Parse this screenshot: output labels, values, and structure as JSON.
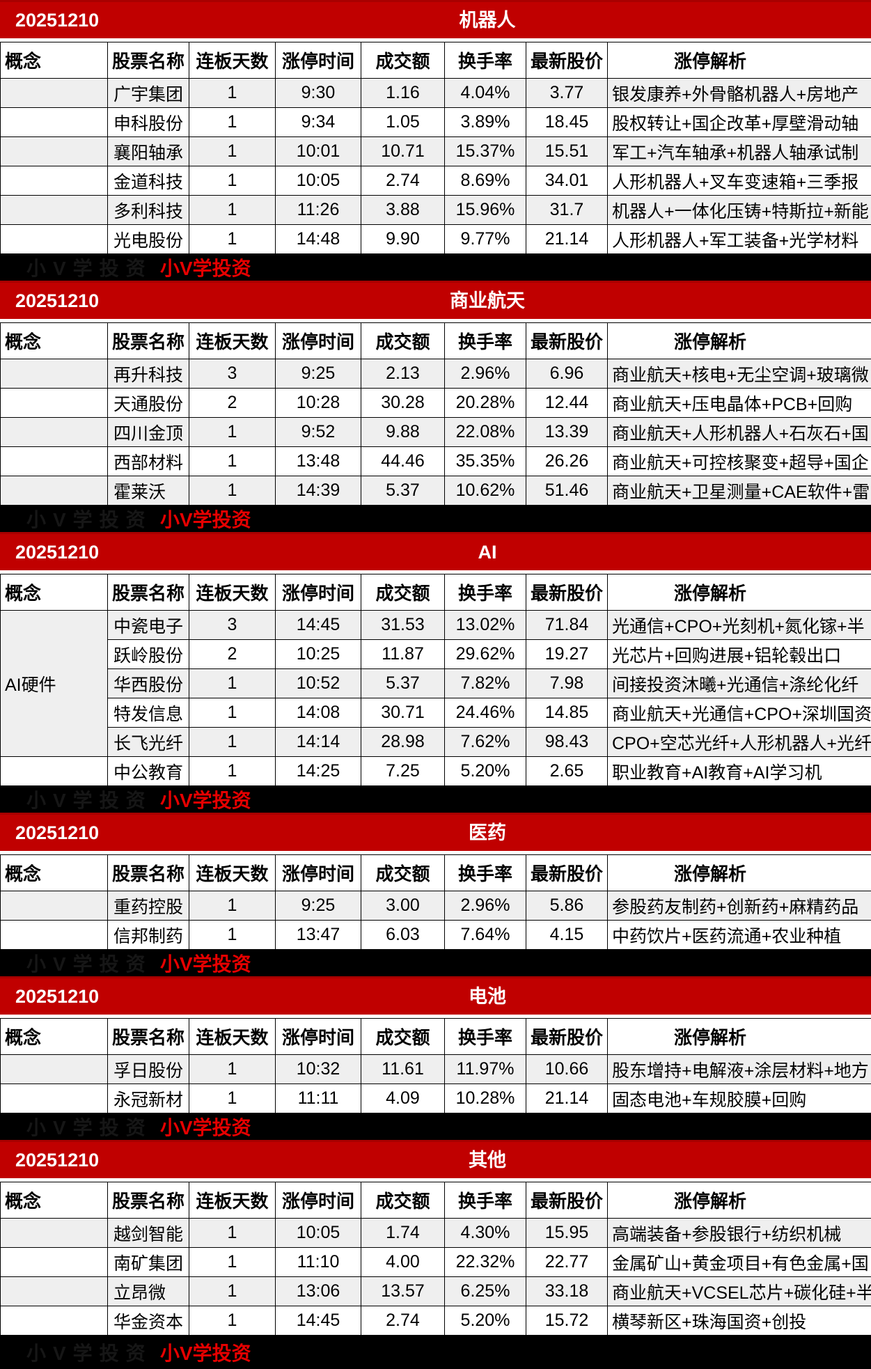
{
  "watermark": {
    "brand": "小V学投资"
  },
  "colors": {
    "header_red": "#c00000",
    "watermark_red": "#e60000",
    "row_alt_gray": "#efefef",
    "bar_black": "#000000"
  },
  "columns": [
    "概念",
    "股票名称",
    "连板天数",
    "涨停时间",
    "成交额",
    "换手率",
    "最新股价",
    "涨停解析"
  ],
  "sections": [
    {
      "date": "20251210",
      "title": "机器人",
      "concept": "",
      "concept_rowspan": 0,
      "rows": [
        {
          "name": "广宇集团",
          "days": "1",
          "time": "9:30",
          "amount": "1.16",
          "turnover": "4.04%",
          "price": "3.77",
          "analysis": "银发康养+外骨骼机器人+房地产"
        },
        {
          "name": "申科股份",
          "days": "1",
          "time": "9:34",
          "amount": "1.05",
          "turnover": "3.89%",
          "price": "18.45",
          "analysis": "股权转让+国企改革+厚壁滑动轴"
        },
        {
          "name": "襄阳轴承",
          "days": "1",
          "time": "10:01",
          "amount": "10.71",
          "turnover": "15.37%",
          "price": "15.51",
          "analysis": "军工+汽车轴承+机器人轴承试制"
        },
        {
          "name": "金道科技",
          "days": "1",
          "time": "10:05",
          "amount": "2.74",
          "turnover": "8.69%",
          "price": "34.01",
          "analysis": "人形机器人+叉车变速箱+三季报"
        },
        {
          "name": "多利科技",
          "days": "1",
          "time": "11:26",
          "amount": "3.88",
          "turnover": "15.96%",
          "price": "31.7",
          "analysis": "机器人+一体化压铸+特斯拉+新能"
        },
        {
          "name": "光电股份",
          "days": "1",
          "time": "14:48",
          "amount": "9.90",
          "turnover": "9.77%",
          "price": "21.14",
          "analysis": "人形机器人+军工装备+光学材料"
        }
      ]
    },
    {
      "date": "20251210",
      "title": "商业航天",
      "concept": "",
      "concept_rowspan": 0,
      "rows": [
        {
          "name": "再升科技",
          "days": "3",
          "time": "9:25",
          "amount": "2.13",
          "turnover": "2.96%",
          "price": "6.96",
          "analysis": "商业航天+核电+无尘空调+玻璃微"
        },
        {
          "name": "天通股份",
          "days": "2",
          "time": "10:28",
          "amount": "30.28",
          "turnover": "20.28%",
          "price": "12.44",
          "analysis": "商业航天+压电晶体+PCB+回购"
        },
        {
          "name": "四川金顶",
          "days": "1",
          "time": "9:52",
          "amount": "9.88",
          "turnover": "22.08%",
          "price": "13.39",
          "analysis": "商业航天+人形机器人+石灰石+国"
        },
        {
          "name": "西部材料",
          "days": "1",
          "time": "13:48",
          "amount": "44.46",
          "turnover": "35.35%",
          "price": "26.26",
          "analysis": "商业航天+可控核聚变+超导+国企"
        },
        {
          "name": "霍莱沃",
          "days": "1",
          "time": "14:39",
          "amount": "5.37",
          "turnover": "10.62%",
          "price": "51.46",
          "analysis": "商业航天+卫星测量+CAE软件+雷"
        }
      ]
    },
    {
      "date": "20251210",
      "title": "AI",
      "concept": "AI硬件",
      "concept_rowspan": 5,
      "rows": [
        {
          "name": "中瓷电子",
          "days": "3",
          "time": "14:45",
          "amount": "31.53",
          "turnover": "13.02%",
          "price": "71.84",
          "analysis": "光通信+CPO+光刻机+氮化镓+半"
        },
        {
          "name": "跃岭股份",
          "days": "2",
          "time": "10:25",
          "amount": "11.87",
          "turnover": "29.62%",
          "price": "19.27",
          "analysis": "光芯片+回购进展+铝轮毂出口"
        },
        {
          "name": "华西股份",
          "days": "1",
          "time": "10:52",
          "amount": "5.37",
          "turnover": "7.82%",
          "price": "7.98",
          "analysis": "间接投资沐曦+光通信+涤纶化纤"
        },
        {
          "name": "特发信息",
          "days": "1",
          "time": "14:08",
          "amount": "30.71",
          "turnover": "24.46%",
          "price": "14.85",
          "analysis": "商业航天+光通信+CPO+深圳国资"
        },
        {
          "name": "长飞光纤",
          "days": "1",
          "time": "14:14",
          "amount": "28.98",
          "turnover": "7.62%",
          "price": "98.43",
          "analysis": "CPO+空芯光纤+人形机器人+光纤"
        },
        {
          "name": "中公教育",
          "days": "1",
          "time": "14:25",
          "amount": "7.25",
          "turnover": "5.20%",
          "price": "2.65",
          "analysis": "职业教育+AI教育+AI学习机"
        }
      ]
    },
    {
      "date": "20251210",
      "title": "医药",
      "concept": "",
      "concept_rowspan": 0,
      "rows": [
        {
          "name": "重药控股",
          "days": "1",
          "time": "9:25",
          "amount": "3.00",
          "turnover": "2.96%",
          "price": "5.86",
          "analysis": "参股药友制药+创新药+麻精药品"
        },
        {
          "name": "信邦制药",
          "days": "1",
          "time": "13:47",
          "amount": "6.03",
          "turnover": "7.64%",
          "price": "4.15",
          "analysis": "中药饮片+医药流通+农业种植"
        }
      ]
    },
    {
      "date": "20251210",
      "title": "电池",
      "concept": "",
      "concept_rowspan": 0,
      "rows": [
        {
          "name": "孚日股份",
          "days": "1",
          "time": "10:32",
          "amount": "11.61",
          "turnover": "11.97%",
          "price": "10.66",
          "analysis": "股东增持+电解液+涂层材料+地方"
        },
        {
          "name": "永冠新材",
          "days": "1",
          "time": "11:11",
          "amount": "4.09",
          "turnover": "10.28%",
          "price": "21.14",
          "analysis": "固态电池+车规胶膜+回购"
        }
      ]
    },
    {
      "date": "20251210",
      "title": "其他",
      "concept": "",
      "concept_rowspan": 0,
      "rows": [
        {
          "name": "越剑智能",
          "days": "1",
          "time": "10:05",
          "amount": "1.74",
          "turnover": "4.30%",
          "price": "15.95",
          "analysis": "高端装备+参股银行+纺织机械"
        },
        {
          "name": "南矿集团",
          "days": "1",
          "time": "11:10",
          "amount": "4.00",
          "turnover": "22.32%",
          "price": "22.77",
          "analysis": "金属矿山+黄金项目+有色金属+国"
        },
        {
          "name": "立昂微",
          "days": "1",
          "time": "13:06",
          "amount": "13.57",
          "turnover": "6.25%",
          "price": "33.18",
          "analysis": "商业航天+VCSEL芯片+碳化硅+半"
        },
        {
          "name": "华金资本",
          "days": "1",
          "time": "14:45",
          "amount": "2.74",
          "turnover": "5.20%",
          "price": "15.72",
          "analysis": "横琴新区+珠海国资+创投"
        }
      ]
    }
  ]
}
